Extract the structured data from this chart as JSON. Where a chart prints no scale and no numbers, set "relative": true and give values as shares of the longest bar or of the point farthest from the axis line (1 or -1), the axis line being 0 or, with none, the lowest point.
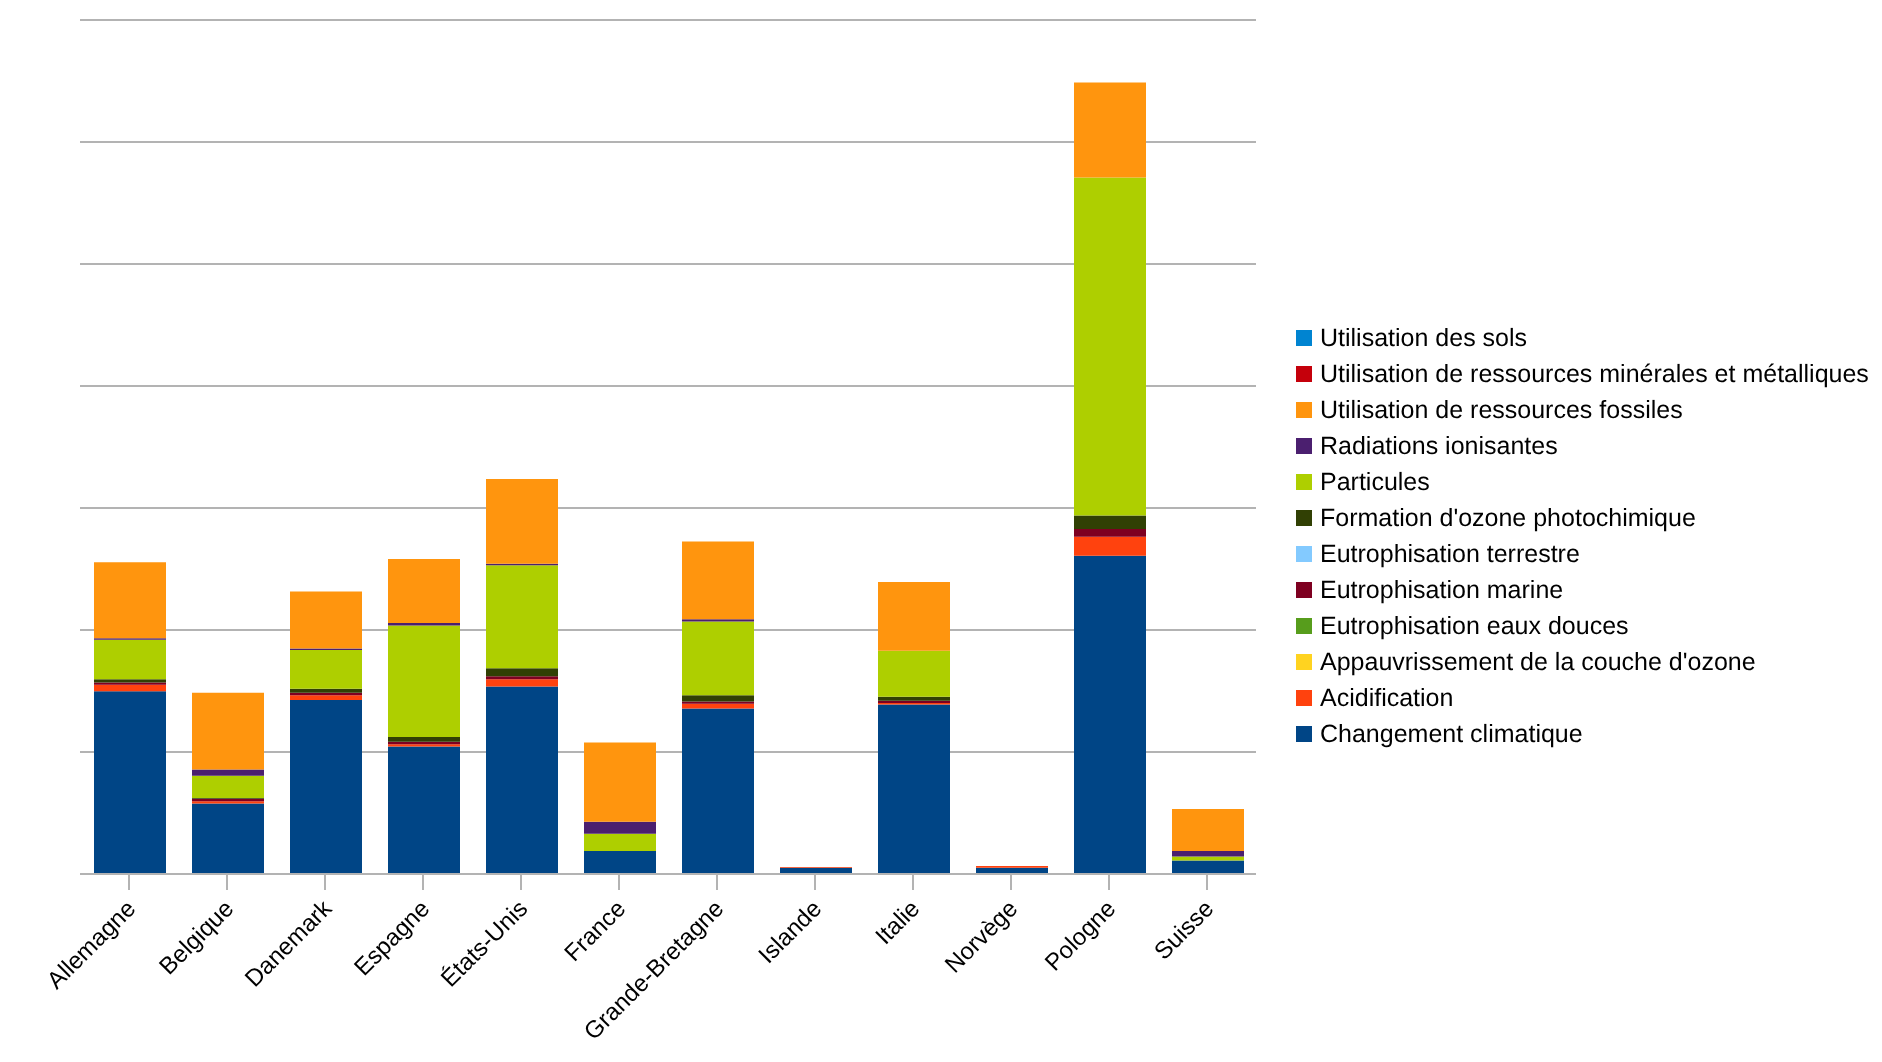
{
  "chart_data": {
    "type": "bar",
    "stacked": true,
    "relative": true,
    "grid": "y",
    "legend": "right",
    "categories": [
      "Allemagne",
      "Belgique",
      "Danemark",
      "Espagne",
      "États-Unis",
      "France",
      "Grande-Bretagne",
      "Islande",
      "Italie",
      "Norvège",
      "Pologne",
      "Suisse"
    ],
    "series": [
      {
        "name": "Changement climatique",
        "color": "#004586",
        "values": [
          0.231,
          0.089,
          0.22,
          0.161,
          0.237,
          0.029,
          0.209,
          0.008,
          0.214,
          0.008,
          0.402,
          0.017
        ]
      },
      {
        "name": "Acidification",
        "color": "#ff420e",
        "values": [
          0.008,
          0.003,
          0.006,
          0.003,
          0.009,
          0,
          0.006,
          0.001,
          0.002,
          0.002,
          0.024,
          0
        ]
      },
      {
        "name": "Appauvrissement de la couche d'ozone",
        "color": "#ffd320",
        "values": [
          0,
          0,
          0,
          0,
          0,
          0,
          0,
          0,
          0,
          0,
          0,
          0
        ]
      },
      {
        "name": "Eutrophisation eaux douces",
        "color": "#579d1c",
        "values": [
          0,
          0,
          0,
          0,
          0,
          0,
          0,
          0,
          0,
          0,
          0,
          0
        ]
      },
      {
        "name": "Eutrophisation marine",
        "color": "#7e0021",
        "values": [
          0.003,
          0.003,
          0.003,
          0.003,
          0.004,
          0,
          0.003,
          0,
          0.003,
          0,
          0.01,
          0
        ]
      },
      {
        "name": "Eutrophisation terrestre",
        "color": "#83caff",
        "values": [
          0,
          0,
          0,
          0,
          0,
          0,
          0,
          0,
          0,
          0,
          0,
          0
        ]
      },
      {
        "name": "Formation d'ozone photochimique",
        "color": "#314004",
        "values": [
          0.004,
          0.001,
          0.005,
          0.006,
          0.01,
          0,
          0.008,
          0,
          0.005,
          0,
          0.017,
          0
        ]
      },
      {
        "name": "Particules",
        "color": "#aecf00",
        "values": [
          0.05,
          0.028,
          0.049,
          0.141,
          0.13,
          0.022,
          0.093,
          0,
          0.058,
          0,
          0.427,
          0.005
        ]
      },
      {
        "name": "Radiations ionisantes",
        "color": "#4b1f6f",
        "values": [
          0.002,
          0.008,
          0.002,
          0.003,
          0.002,
          0.015,
          0.003,
          0,
          0,
          0,
          0,
          0.007
        ]
      },
      {
        "name": "Utilisation de ressources fossiles",
        "color": "#ff950e",
        "values": [
          0.096,
          0.097,
          0.072,
          0.081,
          0.107,
          0.1,
          0.098,
          0,
          0.087,
          0,
          0.12,
          0.053
        ]
      },
      {
        "name": "Utilisation de ressources minérales et métalliques",
        "color": "#c5000b",
        "values": [
          0,
          0,
          0,
          0,
          0,
          0,
          0,
          0,
          0,
          0,
          0,
          0
        ]
      },
      {
        "name": "Utilisation des sols",
        "color": "#0084d1",
        "values": [
          0,
          0,
          0,
          0,
          0,
          0,
          0,
          0,
          0,
          0,
          0,
          0
        ]
      }
    ]
  }
}
